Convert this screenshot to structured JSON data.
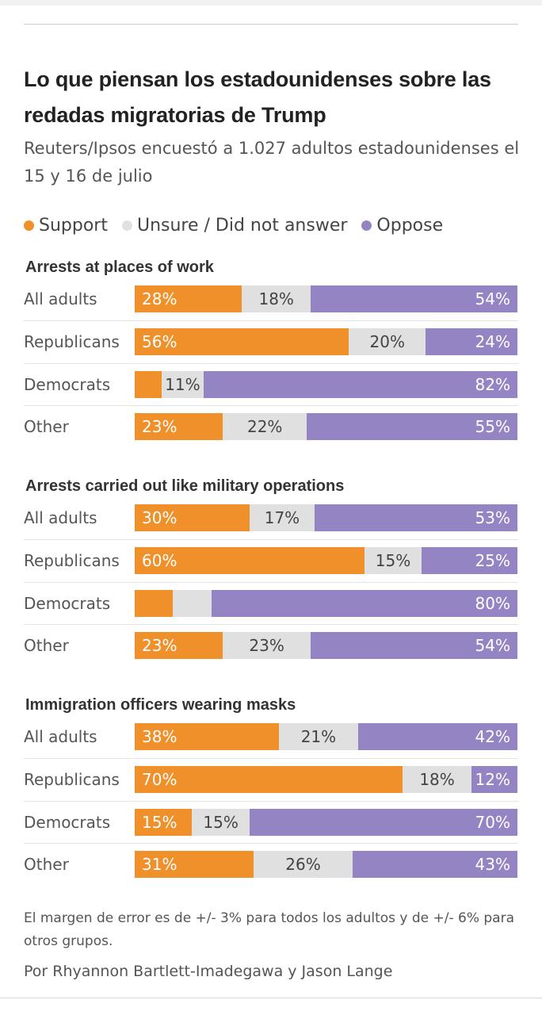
{
  "title": "Lo que piensan los estadounidenses sobre las redadas migratorias de Trump",
  "subtitle": "Reuters/Ipsos encuestó a 1.027 adultos estadounidenses el 15 y 16 de julio",
  "legend": [
    {
      "key": "support",
      "label": "Support",
      "color": "#f0902a"
    },
    {
      "key": "unsure",
      "label": "Unsure / Did not answer",
      "color": "#e0e0e0"
    },
    {
      "key": "oppose",
      "label": "Oppose",
      "color": "#9584c4"
    }
  ],
  "chart_data": {
    "type": "bar",
    "orientation": "horizontal",
    "stacked": true,
    "normalized_percent": true,
    "legend_position": "top",
    "colors": {
      "support": "#f0902a",
      "unsure": "#e0e0e0",
      "oppose": "#9584c4"
    },
    "panels": [
      {
        "title": "Arrests at places of work",
        "rows": [
          {
            "group": "All adults",
            "support": 28,
            "unsure": 18,
            "oppose": 54,
            "labels": {
              "support": "28%",
              "unsure": "18%",
              "oppose": "54%"
            }
          },
          {
            "group": "Republicans",
            "support": 56,
            "unsure": 20,
            "oppose": 24,
            "labels": {
              "support": "56%",
              "unsure": "20%",
              "oppose": "24%"
            }
          },
          {
            "group": "Democrats",
            "support": 7,
            "unsure": 11,
            "oppose": 82,
            "labels": {
              "support": "",
              "unsure": "11%",
              "oppose": "82%"
            }
          },
          {
            "group": "Other",
            "support": 23,
            "unsure": 22,
            "oppose": 55,
            "labels": {
              "support": "23%",
              "unsure": "22%",
              "oppose": "55%"
            }
          }
        ]
      },
      {
        "title": "Arrests carried out like military operations",
        "rows": [
          {
            "group": "All adults",
            "support": 30,
            "unsure": 17,
            "oppose": 53,
            "labels": {
              "support": "30%",
              "unsure": "17%",
              "oppose": "53%"
            }
          },
          {
            "group": "Republicans",
            "support": 60,
            "unsure": 15,
            "oppose": 25,
            "labels": {
              "support": "60%",
              "unsure": "15%",
              "oppose": "25%"
            }
          },
          {
            "group": "Democrats",
            "support": 10,
            "unsure": 10,
            "oppose": 80,
            "labels": {
              "support": "",
              "unsure": "",
              "oppose": "80%"
            }
          },
          {
            "group": "Other",
            "support": 23,
            "unsure": 23,
            "oppose": 54,
            "labels": {
              "support": "23%",
              "unsure": "23%",
              "oppose": "54%"
            }
          }
        ]
      },
      {
        "title": "Immigration officers wearing masks",
        "rows": [
          {
            "group": "All adults",
            "support": 38,
            "unsure": 21,
            "oppose": 42,
            "labels": {
              "support": "38%",
              "unsure": "21%",
              "oppose": "42%"
            }
          },
          {
            "group": "Republicans",
            "support": 70,
            "unsure": 18,
            "oppose": 12,
            "labels": {
              "support": "70%",
              "unsure": "18%",
              "oppose": "12%"
            }
          },
          {
            "group": "Democrats",
            "support": 15,
            "unsure": 15,
            "oppose": 70,
            "labels": {
              "support": "15%",
              "unsure": "15%",
              "oppose": "70%"
            }
          },
          {
            "group": "Other",
            "support": 31,
            "unsure": 26,
            "oppose": 43,
            "labels": {
              "support": "31%",
              "unsure": "26%",
              "oppose": "43%"
            }
          }
        ]
      }
    ]
  },
  "footnote": "El margen de error es de +/- 3% para todos los adultos y de +/- 6% para otros grupos.",
  "credit": "Por Rhyannon Bartlett-Imadegawa y Jason Lange"
}
